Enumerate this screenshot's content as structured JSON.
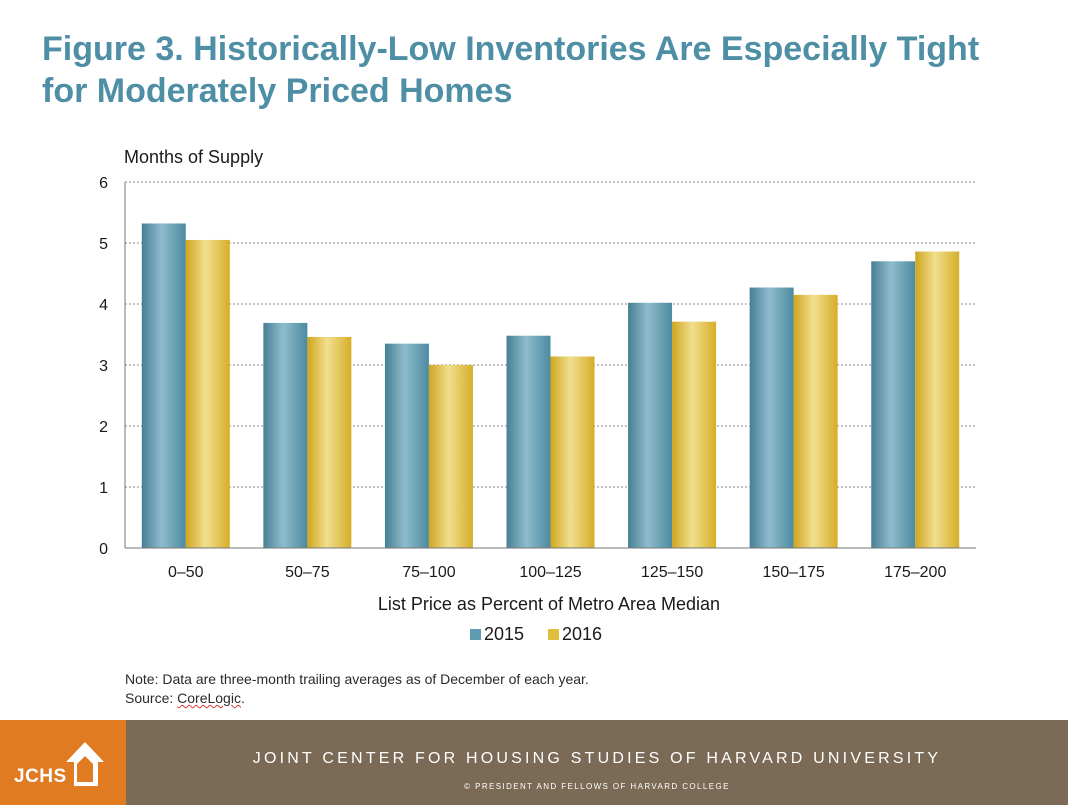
{
  "figure": {
    "title_line1": "Figure 3. Historically-Low Inventories Are Especially Tight",
    "title_line2": "for Moderately Priced Homes"
  },
  "chart_data": {
    "type": "bar",
    "ylabel": "Months of Supply",
    "xlabel": "List Price as Percent of Metro Area Median",
    "categories": [
      "0–50",
      "50–75",
      "75–100",
      "100–125",
      "125–150",
      "150–175",
      "175–200"
    ],
    "series": [
      {
        "name": "2015",
        "values": [
          5.32,
          3.69,
          3.35,
          3.48,
          4.02,
          4.27,
          4.7
        ],
        "color": "#5f9bb1"
      },
      {
        "name": "2016",
        "values": [
          5.05,
          3.46,
          3.0,
          3.14,
          3.71,
          4.15,
          4.86
        ],
        "color": "#e0bf3c"
      }
    ],
    "ylim": [
      0,
      6
    ],
    "yticks": [
      "0",
      "1",
      "2",
      "3",
      "4",
      "5",
      "6"
    ],
    "grid": true,
    "legend_position": "bottom"
  },
  "note": {
    "text": "Note: Data are three-month trailing averages as of December of each year.",
    "source_prefix": "Source: ",
    "source_name": "CoreLogic",
    "source_suffix": "."
  },
  "footer": {
    "logo_text": "JCHS",
    "title": "JOINT CENTER FOR HOUSING STUDIES OF HARVARD UNIVERSITY",
    "copyright": "© PRESIDENT AND FELLOWS OF HARVARD COLLEGE",
    "logo_color": "#e07b22",
    "bar_color": "#7b6a55"
  }
}
